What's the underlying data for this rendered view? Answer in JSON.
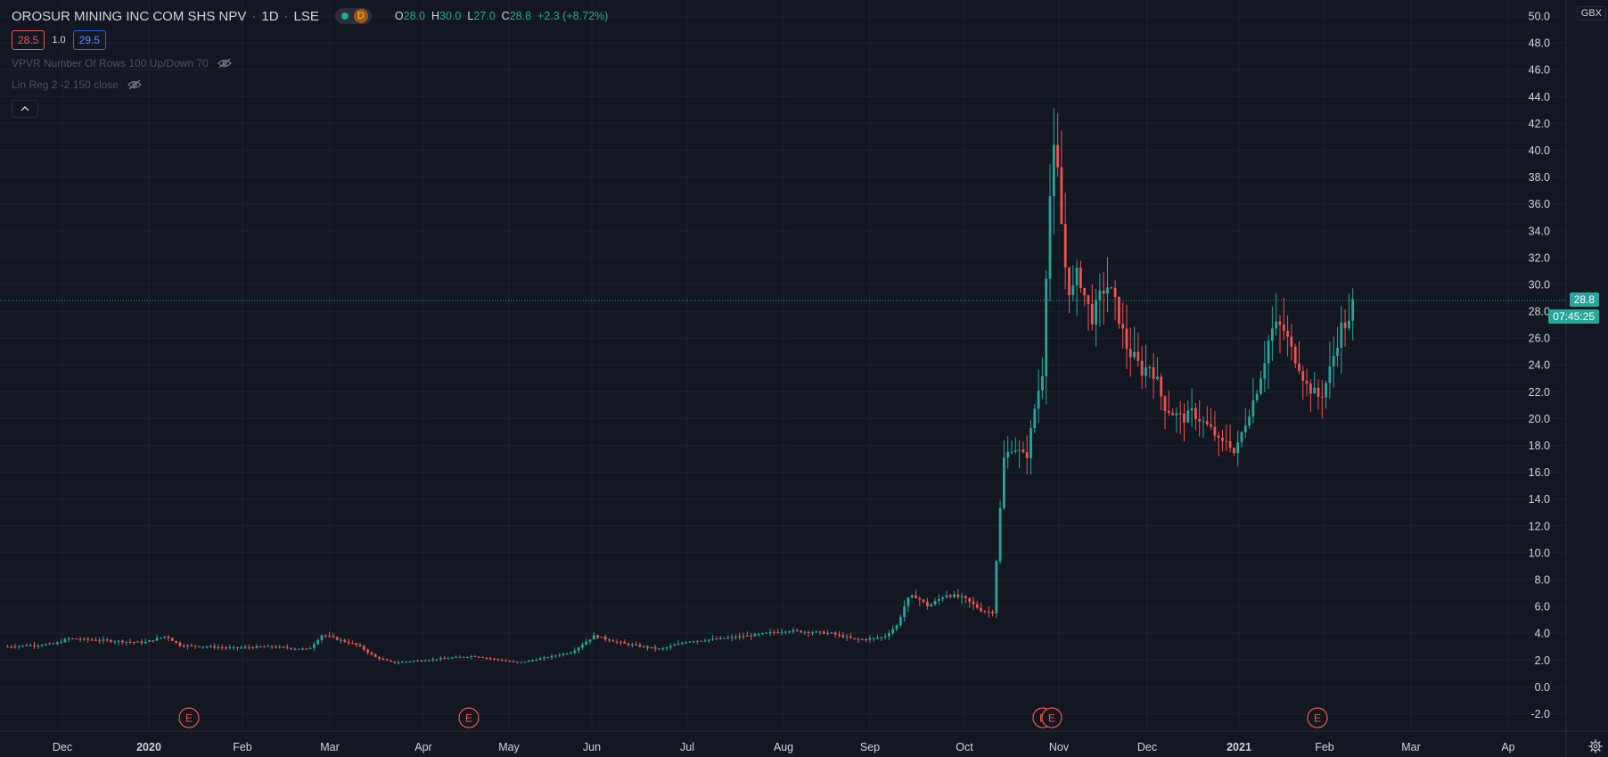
{
  "legend": {
    "symbol": "OROSUR MINING INC COM SHS NPV",
    "interval": "1D",
    "exchange": "LSE",
    "delay_badge": "D",
    "open_label": "O",
    "open": "28.0",
    "high_label": "H",
    "high": "30.0",
    "low_label": "L",
    "low": "27.0",
    "close_label": "C",
    "close": "28.8",
    "change": "+2.3 (+8.72%)"
  },
  "quote": {
    "bid": "28.5",
    "spread": "1.0",
    "ask": "29.5"
  },
  "indicators": [
    {
      "label": "VPVR Number Of Rows 100 Up/Down 70",
      "icon": "eye-hidden-icon"
    },
    {
      "label": "Lin Reg 2 -2 150 close",
      "icon": "eye-hidden-icon"
    }
  ],
  "collapse_icon": "chevron-up-icon",
  "currency": "GBX",
  "last_price_tag": "28.8",
  "countdown_tag": "07:45:25",
  "y_axis_ticks": [
    "-2.0",
    "0.0",
    "2.0",
    "4.0",
    "6.0",
    "8.0",
    "10.0",
    "12.0",
    "14.0",
    "16.0",
    "18.0",
    "20.0",
    "22.0",
    "24.0",
    "26.0",
    "28.0",
    "30.0",
    "32.0",
    "34.0",
    "36.0",
    "38.0",
    "40.0",
    "42.0",
    "44.0",
    "46.0",
    "48.0",
    "50.0"
  ],
  "x_axis_labels": [
    "Dec",
    "2020",
    "Feb",
    "Mar",
    "Apr",
    "May",
    "Jun",
    "Jul",
    "Aug",
    "Sep",
    "Oct",
    "Nov",
    "Dec",
    "2021",
    "Feb",
    "Mar",
    "Ap"
  ],
  "earnings_markers": [
    "E",
    "E",
    "E",
    "E",
    "E"
  ],
  "colors": {
    "up": "#26a69a",
    "down": "#ef5350",
    "background": "#131722",
    "grid": "#1e222d"
  },
  "chart_data": {
    "type": "candlestick",
    "ylim": [
      -3.3,
      51.2
    ],
    "description_points_close": [
      {
        "date": "2019-11",
        "close": 3.0
      },
      {
        "date": "2020-01",
        "close": 3.2
      },
      {
        "date": "2020-03",
        "close": 2.0
      },
      {
        "date": "2020-05",
        "close": 2.0
      },
      {
        "date": "2020-06",
        "close": 3.5
      },
      {
        "date": "2020-08",
        "close": 4.0
      },
      {
        "date": "2020-09-01",
        "close": 6.5
      },
      {
        "date": "2020-09-30",
        "close": 5.5
      },
      {
        "date": "2020-10-16",
        "close": 44.0
      },
      {
        "date": "2020-11",
        "close": 29.0
      },
      {
        "date": "2020-12-20",
        "close": 17.0
      },
      {
        "date": "2021-01-05",
        "close": 27.0
      },
      {
        "date": "2021-01-20",
        "close": 21.0
      },
      {
        "date": "2021-01-26",
        "close": 28.8
      }
    ]
  }
}
